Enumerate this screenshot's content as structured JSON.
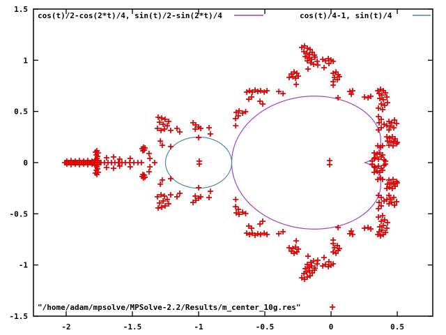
{
  "figure": {
    "background": "#ffffff",
    "border_color": "#000000",
    "text_color": "#000000"
  },
  "legend": {
    "position": "top-inside",
    "entries": [
      {
        "label": "cos(t)/2-cos(2*t)/4, sin(t)/2-sin(2*t)/4",
        "sample": "line",
        "color": "#a33fc9"
      },
      {
        "label": "cos(t)/4-1, sin(t)/4",
        "sample": "line",
        "color": "#4d86ae"
      }
    ]
  },
  "bottom_key": {
    "label": "\"/home/adam/mpsolve/MPSolve-2.2/Results/m_center_10g.res\"",
    "sample": "plus-marker",
    "color": "#dd0000"
  },
  "chart_data": {
    "type": "scatter",
    "title": "",
    "xlabel": "",
    "ylabel": "",
    "grid": false,
    "xlim": [
      -2.247,
      0.768
    ],
    "ylim": [
      -1.5,
      1.5
    ],
    "xticks": {
      "values": [
        -2,
        -1.5,
        -1,
        -0.5,
        0,
        0.5
      ],
      "labels": [
        "-2",
        "-1.5",
        "-1",
        "-0.5",
        "0",
        "0.5"
      ]
    },
    "yticks": {
      "values": [
        1.5,
        1,
        0.5,
        0,
        -0.5,
        -1,
        -1.5
      ],
      "labels": [
        "1.5",
        "1",
        "0.5",
        "0",
        "-0.5",
        "-1",
        "-1.5"
      ]
    },
    "series": [
      {
        "name": "cos(t)/2-cos(2*t)/4, sin(t)/2-sin(2*t)/4",
        "kind": "parametric-curve",
        "curve": "cardioid",
        "color": "#a33fc9",
        "t_range": [
          0,
          6.2832
        ]
      },
      {
        "name": "cos(t)/4-1, sin(t)/4",
        "kind": "parametric-curve",
        "curve": "circle",
        "color": "#4d86ae",
        "t_range": [
          0,
          6.2832
        ]
      },
      {
        "name": "\"/home/adam/mpsolve/MPSolve-2.2/Results/m_center_10g.res\"",
        "kind": "points",
        "marker": "plus",
        "color": "#dd0000",
        "symmetric_about_x_axis": true,
        "points": [
          [
            -2.011,
            0
          ],
          [
            -2.0,
            0
          ],
          [
            -1.989,
            0
          ],
          [
            -1.979,
            0
          ],
          [
            -1.968,
            0
          ],
          [
            -1.958,
            0
          ],
          [
            -1.947,
            0
          ],
          [
            -1.937,
            0
          ],
          [
            -1.926,
            0
          ],
          [
            -1.916,
            0
          ],
          [
            -1.905,
            0
          ],
          [
            -1.895,
            0
          ],
          [
            -1.884,
            0
          ],
          [
            -1.874,
            0
          ],
          [
            -1.863,
            0
          ],
          [
            -1.853,
            0
          ],
          [
            -1.842,
            0
          ],
          [
            -1.832,
            0
          ],
          [
            -1.821,
            0
          ],
          [
            -1.811,
            0
          ],
          [
            -1.8,
            0
          ],
          [
            -1.789,
            0
          ],
          [
            -1.779,
            0
          ],
          [
            -1.768,
            0
          ],
          [
            -1.758,
            0
          ],
          [
            -1.747,
            0
          ],
          [
            -1.737,
            0
          ],
          [
            -1.995,
            0.014
          ],
          [
            -1.963,
            0.02
          ],
          [
            -1.932,
            0.014
          ],
          [
            -1.9,
            0.02
          ],
          [
            -1.868,
            0.014
          ],
          [
            -1.837,
            0.02
          ],
          [
            -1.805,
            0.014
          ],
          [
            -1.779,
            0.102
          ],
          [
            -1.768,
            0.116
          ],
          [
            -1.758,
            0.095
          ],
          [
            -1.773,
            0.075
          ],
          [
            -1.763,
            0.061
          ],
          [
            -1.768,
            0.041
          ],
          [
            -1.779,
            0.027
          ],
          [
            -1.758,
            0.02
          ],
          [
            -1.711,
            0
          ],
          [
            -1.684,
            0
          ],
          [
            -1.658,
            0
          ],
          [
            -1.632,
            0
          ],
          [
            -1.605,
            0
          ],
          [
            -1.579,
            0
          ],
          [
            -1.553,
            0
          ],
          [
            -1.521,
            0
          ],
          [
            -1.489,
            0
          ],
          [
            -1.458,
            0
          ],
          [
            -1.432,
            0
          ],
          [
            -1.332,
            0
          ],
          [
            -1.695,
            0.048
          ],
          [
            -1.642,
            0.055
          ],
          [
            -1.596,
            0.034
          ],
          [
            -1.516,
            0.041
          ],
          [
            -1.368,
            0.041
          ],
          [
            -1.426,
            0.136
          ],
          [
            -1.416,
            0.15
          ],
          [
            -1.405,
            0.143
          ],
          [
            -1.411,
            0.123
          ],
          [
            -1.421,
            0.116
          ],
          [
            -1.305,
            0.443
          ],
          [
            -1.279,
            0.436
          ],
          [
            -1.253,
            0.423
          ],
          [
            -1.226,
            0.402
          ],
          [
            -1.295,
            0.395
          ],
          [
            -1.268,
            0.375
          ],
          [
            -1.237,
            0.361
          ],
          [
            -1.311,
            0.334
          ],
          [
            -1.284,
            0.314
          ],
          [
            -1.258,
            0.327
          ],
          [
            -1.211,
            0.314
          ],
          [
            -1.163,
            0.334
          ],
          [
            -1.142,
            0.3
          ],
          [
            -1.289,
            0.211
          ],
          [
            -1.274,
            0.17
          ],
          [
            -1.211,
            0.157
          ],
          [
            -1.374,
            0.089
          ],
          [
            -1.0,
            0.245
          ],
          [
            -1.042,
            0.389
          ],
          [
            -1.021,
            0.368
          ],
          [
            -1.0,
            0.348
          ],
          [
            -1.026,
            0.327
          ],
          [
            -0.984,
            0.334
          ],
          [
            -0.921,
            0.341
          ],
          [
            -0.911,
            0.28
          ],
          [
            -0.995,
            0.014
          ],
          [
            -0.72,
            0.36
          ],
          [
            -0.716,
            0.491
          ],
          [
            -0.695,
            0.505
          ],
          [
            -0.668,
            0.484
          ],
          [
            -0.7,
            0.457
          ],
          [
            -0.721,
            0.43
          ],
          [
            -0.645,
            0.498
          ],
          [
            -0.637,
            0.689
          ],
          [
            -0.616,
            0.702
          ],
          [
            -0.595,
            0.689
          ],
          [
            -0.574,
            0.709
          ],
          [
            -0.553,
            0.695
          ],
          [
            -0.532,
            0.702
          ],
          [
            -0.505,
            0.689
          ],
          [
            -0.484,
            0.702
          ],
          [
            -0.621,
            0.62
          ],
          [
            -0.6,
            0.641
          ],
          [
            -0.537,
            0.6
          ],
          [
            -0.516,
            0.573
          ],
          [
            -0.395,
            0.695
          ],
          [
            -0.363,
            0.675
          ],
          [
            -0.3,
            0.866
          ],
          [
            -0.279,
            0.886
          ],
          [
            -0.258,
            0.873
          ],
          [
            -0.289,
            0.839
          ],
          [
            -0.268,
            0.825
          ],
          [
            -0.247,
            0.845
          ],
          [
            -0.316,
            0.832
          ],
          [
            -0.174,
            0.914
          ],
          [
            -0.263,
            0.764
          ],
          [
            -0.221,
            1.125
          ],
          [
            -0.2,
            1.139
          ],
          [
            -0.179,
            1.118
          ],
          [
            -0.158,
            1.105
          ],
          [
            -0.205,
            1.084
          ],
          [
            -0.184,
            1.07
          ],
          [
            -0.163,
            1.057
          ],
          [
            -0.142,
            1.077
          ],
          [
            -0.126,
            1.05
          ],
          [
            -0.195,
            1.036
          ],
          [
            -0.168,
            1.023
          ],
          [
            -0.147,
            1.009
          ],
          [
            -0.121,
            1.03
          ],
          [
            -0.105,
            0.989
          ],
          [
            -0.153,
            0.975
          ],
          [
            -0.132,
            0.961
          ],
          [
            -0.1,
            0.954
          ],
          [
            -0.179,
            0.995
          ],
          [
            -0.063,
            1.009
          ],
          [
            -0.042,
            0.995
          ],
          [
            -0.021,
            1.016
          ],
          [
            0.0,
            1.002
          ],
          [
            0.016,
            0.989
          ],
          [
            -0.016,
            0.968
          ],
          [
            -0.053,
            0.927
          ],
          [
            0.016,
            0.873
          ],
          [
            0.037,
            0.886
          ],
          [
            0.053,
            0.859
          ],
          [
            0.026,
            0.832
          ],
          [
            0.047,
            0.811
          ],
          [
            0.016,
            0.791
          ],
          [
            0.063,
            0.839
          ],
          [
            0.016,
            0.757
          ],
          [
            0.142,
            0.695
          ],
          [
            0.163,
            0.702
          ],
          [
            0.153,
            0.668
          ],
          [
            0.253,
            0.641
          ],
          [
            0.279,
            0.634
          ],
          [
            0.3,
            0.648
          ],
          [
            0.053,
            0.634
          ],
          [
            0.353,
            0.702
          ],
          [
            0.374,
            0.716
          ],
          [
            0.395,
            0.702
          ],
          [
            0.363,
            0.675
          ],
          [
            0.384,
            0.661
          ],
          [
            0.411,
            0.682
          ],
          [
            0.368,
            0.627
          ],
          [
            0.395,
            0.614
          ],
          [
            0.421,
            0.641
          ],
          [
            0.379,
            0.573
          ],
          [
            0.405,
            0.559
          ],
          [
            0.426,
            0.586
          ],
          [
            0.358,
            0.532
          ],
          [
            0.389,
            0.518
          ],
          [
            0.358,
            0.45
          ],
          [
            0.379,
            0.423
          ],
          [
            0.363,
            0.389
          ],
          [
            0.4,
            0.375
          ],
          [
            0.379,
            0.341
          ],
          [
            0.358,
            0.32
          ],
          [
            0.421,
            0.361
          ],
          [
            0.437,
            0.402
          ],
          [
            0.458,
            0.389
          ],
          [
            0.479,
            0.416
          ],
          [
            0.447,
            0.355
          ],
          [
            0.474,
            0.341
          ],
          [
            0.495,
            0.382
          ],
          [
            0.437,
            0.32
          ],
          [
            0.421,
            0.252
          ],
          [
            0.442,
            0.239
          ],
          [
            0.463,
            0.252
          ],
          [
            0.484,
            0.232
          ],
          [
            0.426,
            0.211
          ],
          [
            0.453,
            0.198
          ],
          [
            0.474,
            0.211
          ],
          [
            0.495,
            0.184
          ],
          [
            0.437,
            0.17
          ],
          [
            0.468,
            0.164
          ],
          [
            0.5,
            0.198
          ],
          [
            0.353,
            0.164
          ],
          [
            0.374,
            0.15
          ],
          [
            0.389,
            0.164
          ],
          [
            0.326,
            0.095
          ],
          [
            0.347,
            0.082
          ],
          [
            0.368,
            0.095
          ],
          [
            0.389,
            0.075
          ],
          [
            0.332,
            0.048
          ],
          [
            0.358,
            0.034
          ],
          [
            0.379,
            0.055
          ],
          [
            0.4,
            0.027
          ],
          [
            0.411,
            0.014
          ],
          [
            0.311,
            0.014
          ],
          [
            0.326,
            0.041
          ],
          [
            -0.011,
            0.02
          ]
        ]
      }
    ]
  }
}
